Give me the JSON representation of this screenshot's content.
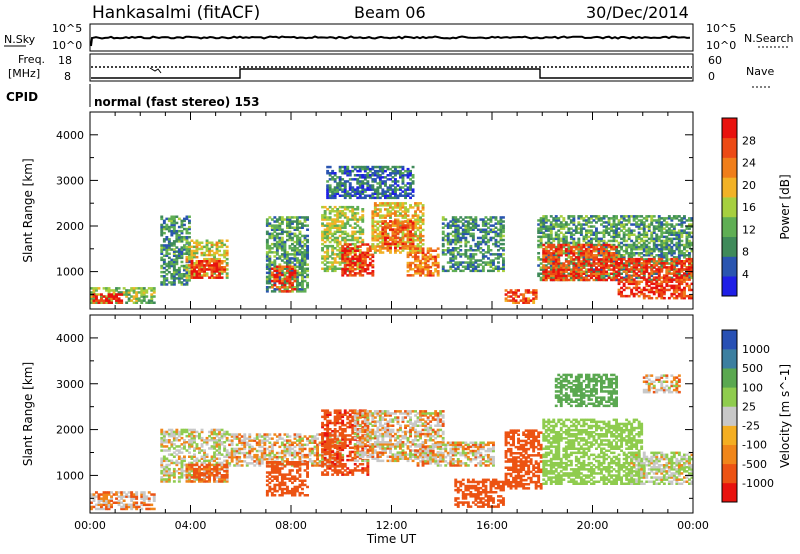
{
  "header": {
    "radar": "Hankasalmi (fitACF)",
    "beam": "Beam 06",
    "date": "30/Dec/2014"
  },
  "top_panels": {
    "nsky_label": "N.Sky",
    "nsearch_label": "N.Search",
    "nsky_ticks": [
      "10^5",
      "10^0"
    ],
    "nsearch_ticks": [
      "10^5",
      "10^0"
    ],
    "freq_label_1": "Freq.",
    "freq_label_2": "[MHz]",
    "freq_ticks": [
      "18",
      "8"
    ],
    "nave_label": "Nave",
    "nave_ticks": [
      "60",
      "0"
    ],
    "cpid_label": "CPID",
    "cpid_value": "normal (fast stereo) 153"
  },
  "colors": {
    "power_scale": [
      "#1f1fe6",
      "#2a55b0",
      "#3f8a5a",
      "#5fae54",
      "#a6cf3f",
      "#f2b226",
      "#f07e1a",
      "#ec4a15",
      "#e8120e"
    ],
    "velocity_scale": [
      "#e8120e",
      "#ec5313",
      "#f0861a",
      "#f4ae22",
      "#c8c8c8",
      "#8fcc4e",
      "#5aa850",
      "#3c7fa0",
      "#2850b4"
    ]
  },
  "chart_data": [
    {
      "type": "heatmap",
      "name": "power",
      "ylabel": "Slant Range [km]",
      "yticks": [
        "4000",
        "3000",
        "2000",
        "1000"
      ],
      "ylim": [
        180,
        4500
      ],
      "colorbar_label": "Power [dB]",
      "colorbar_ticks": [
        "28",
        "24",
        "20",
        "16",
        "12",
        "8",
        "4"
      ],
      "colorbar_range": [
        0,
        30
      ],
      "regions": [
        {
          "t": [
            0.0,
            2.6
          ],
          "r": [
            300,
            650
          ],
          "v": 14
        },
        {
          "t": [
            0.1,
            1.3
          ],
          "r": [
            300,
            500
          ],
          "v": 27
        },
        {
          "t": [
            2.8,
            4.0
          ],
          "r": [
            700,
            2200
          ],
          "v": 9
        },
        {
          "t": [
            3.8,
            5.4
          ],
          "r": [
            850,
            1700
          ],
          "v": 16
        },
        {
          "t": [
            4.0,
            5.3
          ],
          "r": [
            850,
            1250
          ],
          "v": 27
        },
        {
          "t": [
            7.0,
            8.6
          ],
          "r": [
            550,
            2200
          ],
          "v": 10
        },
        {
          "t": [
            7.2,
            8.1
          ],
          "r": [
            550,
            1100
          ],
          "v": 26
        },
        {
          "t": [
            9.2,
            10.8
          ],
          "r": [
            1000,
            2400
          ],
          "v": 15
        },
        {
          "t": [
            10.0,
            11.2
          ],
          "r": [
            900,
            1600
          ],
          "v": 27
        },
        {
          "t": [
            11.2,
            13.2
          ],
          "r": [
            1400,
            2500
          ],
          "v": 18
        },
        {
          "t": [
            11.6,
            12.8
          ],
          "r": [
            1500,
            2100
          ],
          "v": 25
        },
        {
          "t": [
            12.6,
            13.8
          ],
          "r": [
            900,
            1500
          ],
          "v": 22
        },
        {
          "t": [
            14.0,
            16.5
          ],
          "r": [
            1000,
            2200
          ],
          "v": 9
        },
        {
          "t": [
            16.5,
            17.8
          ],
          "r": [
            300,
            600
          ],
          "v": 24
        },
        {
          "t": [
            17.8,
            24.0
          ],
          "r": [
            800,
            2200
          ],
          "v": 10
        },
        {
          "t": [
            18.0,
            21.0
          ],
          "r": [
            800,
            1600
          ],
          "v": 26
        },
        {
          "t": [
            21.0,
            24.0
          ],
          "r": [
            400,
            1300
          ],
          "v": 26
        },
        {
          "t": [
            9.4,
            12.8
          ],
          "r": [
            2600,
            3300
          ],
          "v": 6
        }
      ]
    },
    {
      "type": "heatmap",
      "name": "velocity",
      "ylabel": "Slant Range [km]",
      "yticks": [
        "4000",
        "3000",
        "2000",
        "1000"
      ],
      "ylim": [
        180,
        4500
      ],
      "colorbar_label": "Velocity [m s^-1]",
      "colorbar_ticks": [
        "1000",
        "500",
        "100",
        "25",
        "-25",
        "-100",
        "-500",
        "-1000"
      ],
      "xlabel": "Time UT",
      "xticks": [
        "00:00",
        "04:00",
        "08:00",
        "12:00",
        "16:00",
        "20:00",
        "00:00"
      ],
      "xlim": [
        0,
        24
      ],
      "regions": [
        {
          "t": [
            0.0,
            2.6
          ],
          "r": [
            250,
            650
          ],
          "v": -40
        },
        {
          "t": [
            2.8,
            5.4
          ],
          "r": [
            850,
            2000
          ],
          "v": 60
        },
        {
          "t": [
            3.8,
            5.4
          ],
          "r": [
            850,
            1250
          ],
          "v": -150
        },
        {
          "t": [
            5.5,
            10.0
          ],
          "r": [
            1200,
            1900
          ],
          "v": 0
        },
        {
          "t": [
            7.0,
            8.6
          ],
          "r": [
            550,
            1300
          ],
          "v": -300
        },
        {
          "t": [
            9.2,
            11.0
          ],
          "r": [
            1000,
            2400
          ],
          "v": -400
        },
        {
          "t": [
            10.5,
            14.0
          ],
          "r": [
            1300,
            2400
          ],
          "v": 0
        },
        {
          "t": [
            13.0,
            16.0
          ],
          "r": [
            1200,
            1700
          ],
          "v": 0
        },
        {
          "t": [
            14.5,
            16.5
          ],
          "r": [
            300,
            900
          ],
          "v": -300
        },
        {
          "t": [
            16.5,
            18.0
          ],
          "r": [
            700,
            2000
          ],
          "v": -300
        },
        {
          "t": [
            18.0,
            22.0
          ],
          "r": [
            800,
            2200
          ],
          "v": 300
        },
        {
          "t": [
            21.5,
            24.0
          ],
          "r": [
            800,
            1500
          ],
          "v": 80
        },
        {
          "t": [
            18.5,
            21.0
          ],
          "r": [
            2500,
            3200
          ],
          "v": 700
        },
        {
          "t": [
            22.0,
            23.5
          ],
          "r": [
            2800,
            3200
          ],
          "v": 0
        }
      ]
    }
  ]
}
